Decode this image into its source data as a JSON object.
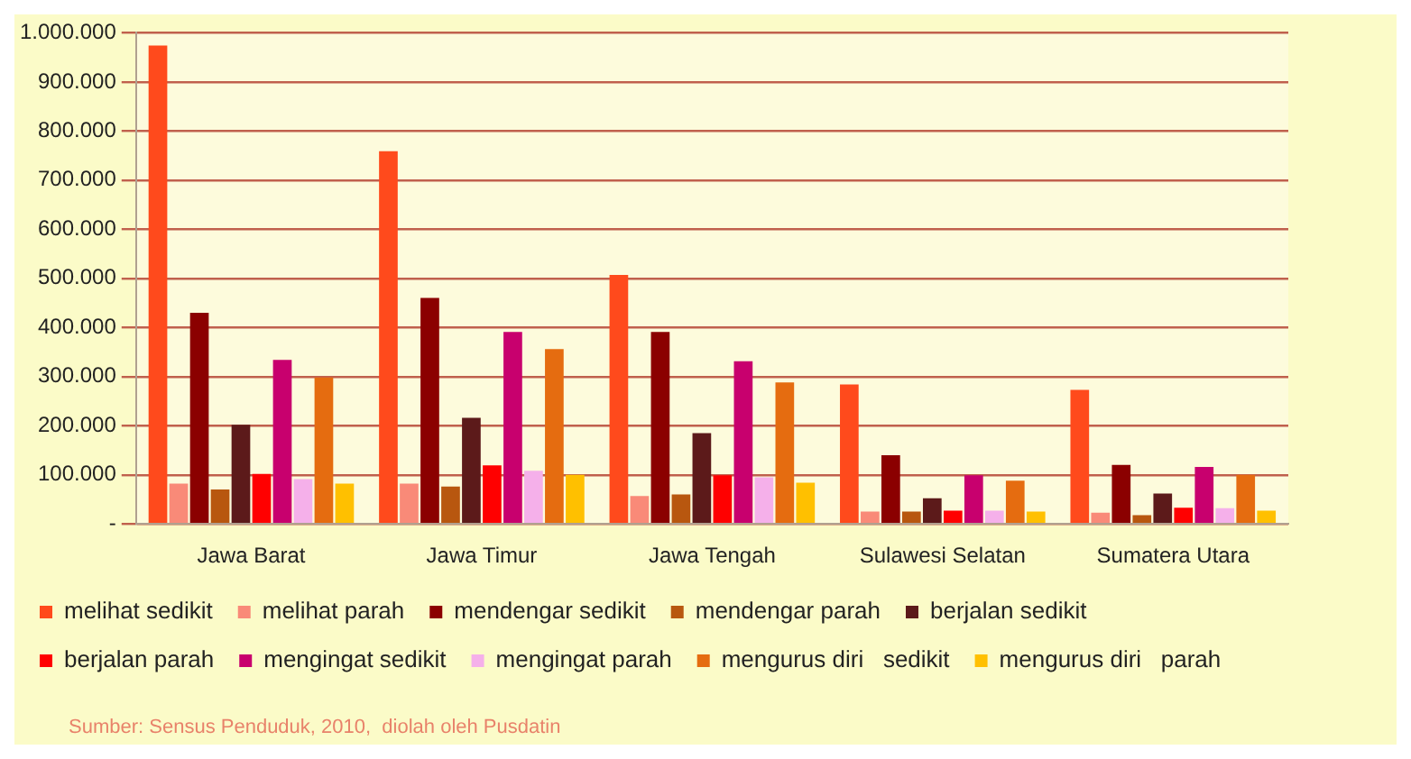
{
  "chart_data": {
    "type": "bar",
    "categories": [
      "Jawa Barat",
      "Jawa Timur",
      "Jawa Tengah",
      "Sulawesi Selatan",
      "Sumatera Utara"
    ],
    "series": [
      {
        "name": "melihat sedikit",
        "color": "#ff4a1c",
        "values": [
          974000,
          759000,
          507000,
          284000,
          273000
        ]
      },
      {
        "name": "melihat parah",
        "color": "#f98a78",
        "values": [
          82000,
          82000,
          57000,
          25000,
          23000
        ]
      },
      {
        "name": "mendengar sedikit",
        "color": "#8b0000",
        "values": [
          430000,
          460000,
          391000,
          140000,
          120000
        ]
      },
      {
        "name": "mendengar parah",
        "color": "#b8570f",
        "values": [
          70000,
          76000,
          60000,
          25000,
          18000
        ]
      },
      {
        "name": "berjalan sedikit",
        "color": "#5c1a1a",
        "values": [
          202000,
          216000,
          185000,
          52000,
          62000
        ]
      },
      {
        "name": "berjalan parah",
        "color": "#ff0000",
        "values": [
          102000,
          119000,
          99000,
          27000,
          33000
        ]
      },
      {
        "name": "mengingat sedikit",
        "color": "#c8006e",
        "values": [
          334000,
          391000,
          331000,
          99000,
          116000
        ]
      },
      {
        "name": "mengingat parah",
        "color": "#f5b0ea",
        "values": [
          91000,
          108000,
          95000,
          27000,
          32000
        ]
      },
      {
        "name": "mengurus diri   sedikit",
        "color": "#e56c10",
        "values": [
          298000,
          356000,
          288000,
          88000,
          100000
        ]
      },
      {
        "name": "mengurus diri   parah",
        "color": "#ffc000",
        "values": [
          82000,
          100000,
          84000,
          25000,
          27000
        ]
      }
    ],
    "ylim": [
      0,
      1000000
    ],
    "yticks": [
      {
        "value": 0,
        "label": "-"
      },
      {
        "value": 100000,
        "label": "100.000"
      },
      {
        "value": 200000,
        "label": "200.000"
      },
      {
        "value": 300000,
        "label": "300.000"
      },
      {
        "value": 400000,
        "label": "400.000"
      },
      {
        "value": 500000,
        "label": "500.000"
      },
      {
        "value": 600000,
        "label": "600.000"
      },
      {
        "value": 700000,
        "label": "700.000"
      },
      {
        "value": 800000,
        "label": "800.000"
      },
      {
        "value": 900000,
        "label": "900.000"
      },
      {
        "value": 1000000,
        "label": "1.000.000"
      }
    ],
    "grid": "y",
    "legend": "bottom",
    "annotations": [
      "Sumber: Sensus Penduduk, 2010,  diolah oleh Pusdatin"
    ]
  }
}
